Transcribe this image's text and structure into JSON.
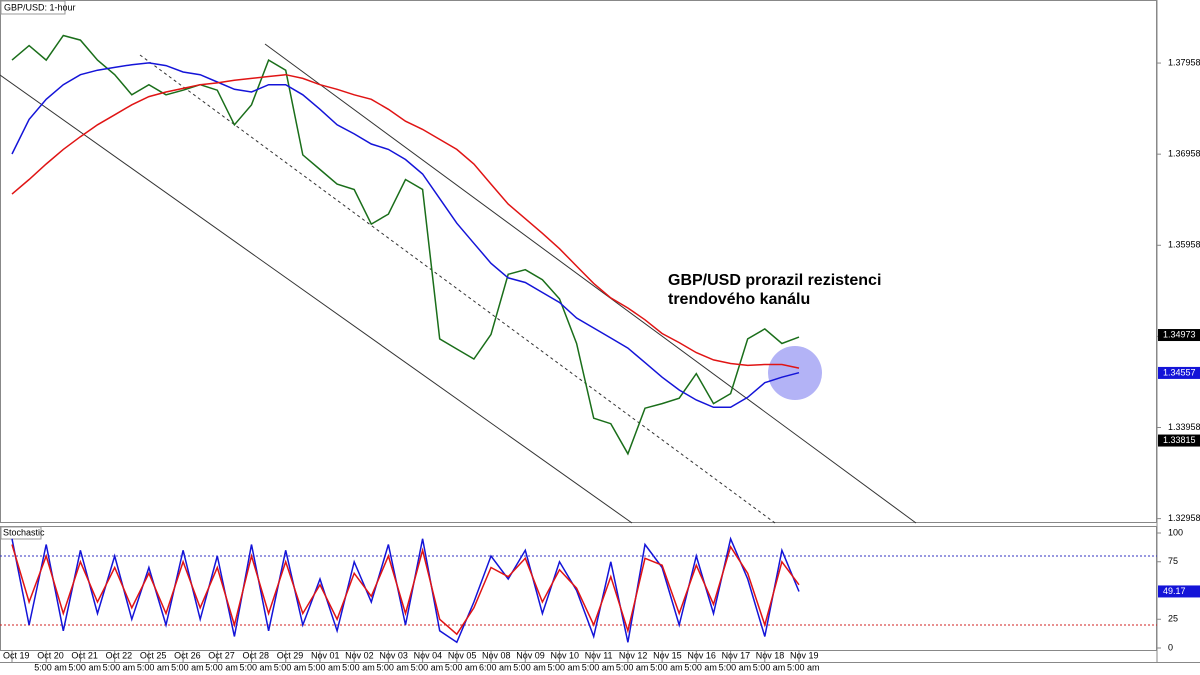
{
  "chart_data": [
    {
      "type": "line",
      "title": "GBP/USD: 1-hour",
      "annotation": [
        "GBP/USD prorazil rezistenci",
        "trendového kanálu"
      ],
      "categories": [
        "Oct 19",
        null,
        "Oct 20",
        null,
        "Oct 21",
        null,
        "Oct 22",
        null,
        "Oct 25",
        null,
        "Oct 26",
        null,
        "Oct 27",
        null,
        "Oct 28",
        null,
        "Oct 29",
        null,
        "Nov 01",
        null,
        "Nov 02",
        null,
        "Nov 03",
        null,
        "Nov 04",
        null,
        "Nov 05",
        null,
        "Nov 08",
        null,
        "Nov 09",
        null,
        "Nov 10",
        null,
        "Nov 11",
        null,
        "Nov 12",
        null,
        "Nov 15",
        null,
        "Nov 16",
        null,
        "Nov 17",
        null,
        "Nov 18",
        null,
        "Nov 19"
      ],
      "time_labels": [
        "5:00 am",
        "5:00 am",
        "5:00 am",
        "5:00 am",
        "5:00 am",
        "5:00 am",
        "5:00 am",
        "5:00 am",
        "5:00 am",
        "5:00 am",
        "5:00 am",
        "5:00 am",
        "5:00 am",
        "6:00 am",
        "5:00 am",
        "5:00 am",
        "5:00 am",
        "5:00 am",
        "5:00 am",
        "5:00 am",
        "5:00 am",
        "5:00 am",
        "5:00 am"
      ],
      "series": [
        {
          "color": "#1a6e1a",
          "values": [
            1.3799,
            1.3815,
            1.3799,
            1.3826,
            1.3821,
            1.3799,
            1.3783,
            1.3761,
            1.3772,
            1.3761,
            1.3766,
            1.3772,
            1.3766,
            1.3728,
            1.375,
            1.3799,
            1.3788,
            1.3695,
            1.3679,
            1.3663,
            1.3657,
            1.3619,
            1.363,
            1.3668,
            1.3657,
            1.3493,
            1.3482,
            1.3471,
            1.3498,
            1.3564,
            1.3569,
            1.3558,
            1.3537,
            1.3488,
            1.3406,
            1.34,
            1.3367,
            1.3417,
            1.3422,
            1.3428,
            1.3455,
            1.3422,
            1.3433,
            1.3493,
            1.3504,
            1.3488,
            1.3495
          ]
        },
        {
          "color": "#1414d8",
          "values": [
            1.3696,
            1.3734,
            1.3756,
            1.3772,
            1.3783,
            1.3788,
            1.3791,
            1.3794,
            1.3796,
            1.3793,
            1.3786,
            1.3783,
            1.3775,
            1.3767,
            1.3764,
            1.3772,
            1.3772,
            1.3761,
            1.3745,
            1.3728,
            1.3718,
            1.3707,
            1.3701,
            1.369,
            1.3674,
            1.3647,
            1.362,
            1.3598,
            1.3576,
            1.356,
            1.3555,
            1.3544,
            1.3533,
            1.3516,
            1.3505,
            1.3494,
            1.3483,
            1.3467,
            1.3451,
            1.3437,
            1.3426,
            1.3418,
            1.3418,
            1.3429,
            1.3445,
            1.3451,
            1.3456
          ]
        },
        {
          "color": "#e01414",
          "values": [
            1.3652,
            1.3668,
            1.3685,
            1.3701,
            1.3715,
            1.3728,
            1.3739,
            1.375,
            1.3759,
            1.3764,
            1.3768,
            1.3772,
            1.3774,
            1.3777,
            1.3779,
            1.3781,
            1.3783,
            1.3779,
            1.3772,
            1.3767,
            1.3761,
            1.3756,
            1.3745,
            1.3732,
            1.3723,
            1.3712,
            1.3701,
            1.3685,
            1.3663,
            1.3641,
            1.3625,
            1.3609,
            1.3592,
            1.3573,
            1.3554,
            1.3538,
            1.3527,
            1.3514,
            1.3499,
            1.3489,
            1.3478,
            1.347,
            1.3466,
            1.3464,
            1.3465,
            1.3465,
            1.3461
          ]
        }
      ],
      "ylim": [
        1.3291,
        1.3865
      ],
      "yticks": [
        1.32958,
        1.33958,
        1.34958,
        1.35958,
        1.36958,
        1.37958
      ],
      "price_markers": [
        {
          "value": 1.34973,
          "color": "#000000"
        },
        {
          "value": 1.34557,
          "color": "#1414d8"
        },
        {
          "value": 1.33815,
          "color": "#000000"
        }
      ]
    },
    {
      "type": "line",
      "title": "Stochastic",
      "series": [
        {
          "color": "#1414d8",
          "values": [
            95,
            20,
            90,
            15,
            85,
            30,
            80,
            25,
            70,
            20,
            85,
            25,
            80,
            10,
            90,
            15,
            85,
            20,
            60,
            15,
            75,
            40,
            90,
            20,
            95,
            15,
            5,
            40,
            80,
            60,
            85,
            30,
            75,
            50,
            10,
            75,
            5,
            90,
            70,
            20,
            80,
            30,
            95,
            60,
            10,
            85,
            49.17
          ]
        },
        {
          "color": "#e01414",
          "values": [
            90,
            40,
            80,
            30,
            75,
            40,
            70,
            35,
            65,
            30,
            75,
            35,
            70,
            20,
            80,
            30,
            75,
            30,
            55,
            25,
            65,
            45,
            80,
            30,
            85,
            25,
            12,
            35,
            70,
            62,
            78,
            40,
            68,
            52,
            20,
            62,
            15,
            78,
            72,
            30,
            72,
            38,
            88,
            65,
            20,
            75,
            55
          ]
        }
      ],
      "ylim": [
        0,
        100
      ],
      "yticks": [
        0,
        25,
        75,
        100
      ],
      "levels": [
        {
          "value": 80,
          "color": "#3030c0"
        },
        {
          "value": 20,
          "color": "#d02020"
        }
      ],
      "last_marker": {
        "value": 49.17,
        "color": "#1414d8"
      }
    }
  ]
}
